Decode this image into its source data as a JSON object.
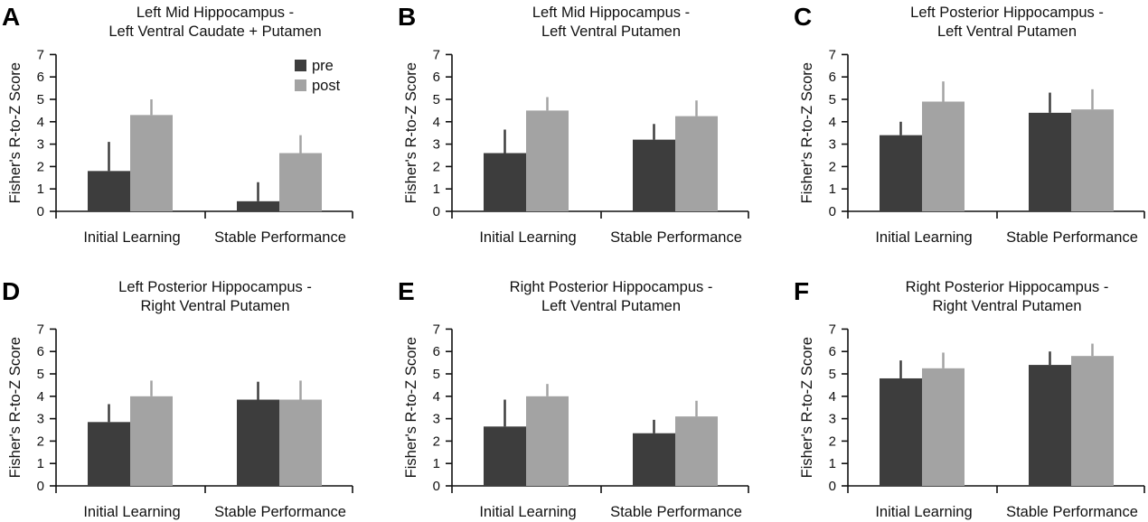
{
  "colors": {
    "pre": "#3d3d3d",
    "post": "#a3a3a3",
    "axis": "#111111"
  },
  "legend_position": "top-right of panel A",
  "chart_data": [
    {
      "panel": "A",
      "type": "bar",
      "title": [
        "Left Mid Hippocampus -",
        "Left Ventral Caudate + Putamen"
      ],
      "ylabel": "Fisher's R-to-Z Score",
      "ylim": [
        0,
        7
      ],
      "yticks": [
        "0",
        "1",
        "2",
        "3",
        "4",
        "5",
        "6",
        "7"
      ],
      "categories": [
        "Initial Learning",
        "Stable Performance"
      ],
      "legend": true,
      "series": [
        {
          "name": "pre",
          "values": [
            1.8,
            0.45
          ],
          "error": [
            1.3,
            0.85
          ]
        },
        {
          "name": "post",
          "values": [
            4.3,
            2.6
          ],
          "error": [
            0.7,
            0.8
          ]
        }
      ]
    },
    {
      "panel": "B",
      "type": "bar",
      "title": [
        "Left Mid Hippocampus -",
        "Left Ventral Putamen"
      ],
      "ylabel": "Fisher's R-to-Z Score",
      "ylim": [
        0,
        7
      ],
      "yticks": [
        "0",
        "1",
        "2",
        "3",
        "4",
        "5",
        "6",
        "7"
      ],
      "categories": [
        "Initial Learning",
        "Stable Performance"
      ],
      "legend": false,
      "series": [
        {
          "name": "pre",
          "values": [
            2.6,
            3.2
          ],
          "error": [
            1.05,
            0.7
          ]
        },
        {
          "name": "post",
          "values": [
            4.5,
            4.25
          ],
          "error": [
            0.6,
            0.7
          ]
        }
      ]
    },
    {
      "panel": "C",
      "type": "bar",
      "title": [
        "Left Posterior Hippocampus -",
        "Left Ventral Putamen"
      ],
      "ylabel": "Fisher's R-to-Z Score",
      "ylim": [
        0,
        7
      ],
      "yticks": [
        "0",
        "1",
        "2",
        "3",
        "4",
        "5",
        "6",
        "7"
      ],
      "categories": [
        "Initial Learning",
        "Stable Performance"
      ],
      "legend": false,
      "series": [
        {
          "name": "pre",
          "values": [
            3.4,
            4.4
          ],
          "error": [
            0.6,
            0.9
          ]
        },
        {
          "name": "post",
          "values": [
            4.9,
            4.55
          ],
          "error": [
            0.9,
            0.9
          ]
        }
      ]
    },
    {
      "panel": "D",
      "type": "bar",
      "title": [
        "Left Posterior Hippocampus -",
        "Right Ventral Putamen"
      ],
      "ylabel": "Fisher's R-to-Z Score",
      "ylim": [
        0,
        7
      ],
      "yticks": [
        "0",
        "1",
        "2",
        "3",
        "4",
        "5",
        "6",
        "7"
      ],
      "categories": [
        "Initial Learning",
        "Stable Performance"
      ],
      "legend": false,
      "series": [
        {
          "name": "pre",
          "values": [
            2.85,
            3.85
          ],
          "error": [
            0.8,
            0.8
          ]
        },
        {
          "name": "post",
          "values": [
            4.0,
            3.85
          ],
          "error": [
            0.7,
            0.85
          ]
        }
      ]
    },
    {
      "panel": "E",
      "type": "bar",
      "title": [
        "Right Posterior Hippocampus -",
        "Left Ventral Putamen"
      ],
      "ylabel": "Fisher's R-to-Z Score",
      "ylim": [
        0,
        7
      ],
      "yticks": [
        "0",
        "1",
        "2",
        "3",
        "4",
        "5",
        "6",
        "7"
      ],
      "categories": [
        "Initial Learning",
        "Stable Performance"
      ],
      "legend": false,
      "series": [
        {
          "name": "pre",
          "values": [
            2.65,
            2.35
          ],
          "error": [
            1.2,
            0.6
          ]
        },
        {
          "name": "post",
          "values": [
            4.0,
            3.1
          ],
          "error": [
            0.55,
            0.7
          ]
        }
      ]
    },
    {
      "panel": "F",
      "type": "bar",
      "title": [
        "Right Posterior Hippocampus -",
        "Right Ventral Putamen"
      ],
      "ylabel": "Fisher's R-to-Z Score",
      "ylim": [
        0,
        7
      ],
      "yticks": [
        "0",
        "1",
        "2",
        "3",
        "4",
        "5",
        "6",
        "7"
      ],
      "categories": [
        "Initial Learning",
        "Stable Performance"
      ],
      "legend": false,
      "series": [
        {
          "name": "pre",
          "values": [
            4.8,
            5.4
          ],
          "error": [
            0.8,
            0.6
          ]
        },
        {
          "name": "post",
          "values": [
            5.25,
            5.8
          ],
          "error": [
            0.7,
            0.55
          ]
        }
      ]
    }
  ]
}
